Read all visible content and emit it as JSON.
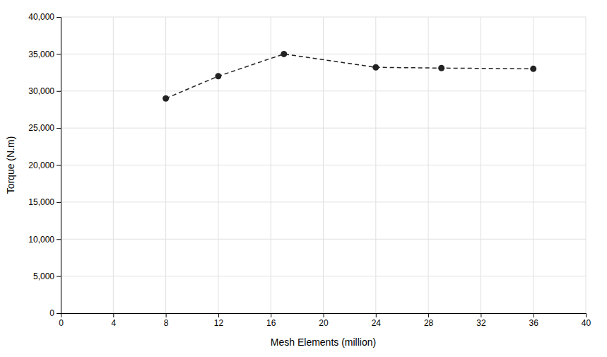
{
  "chart_data": {
    "type": "line",
    "xlabel": "Mesh Elements (million)",
    "ylabel": "Torque (N.m)",
    "x": [
      8,
      12,
      17,
      24,
      29,
      36
    ],
    "values": [
      29000,
      32000,
      35000,
      33200,
      33100,
      33000
    ],
    "color": "#222222",
    "marker": "circle",
    "line_style": "dashed",
    "xlim": [
      0,
      40
    ],
    "ylim": [
      0,
      40000
    ],
    "xticks": [
      0,
      4,
      8,
      12,
      16,
      20,
      24,
      28,
      32,
      36,
      40
    ],
    "yticks": [
      0,
      {
        "value": 5000,
        "label": "5,000"
      },
      {
        "value": 10000,
        "label": "10,000"
      },
      {
        "value": 15000,
        "label": "15,000"
      },
      {
        "value": 20000,
        "label": "20,000"
      },
      {
        "value": 25000,
        "label": "25,000"
      },
      {
        "value": 30000,
        "label": "30,000"
      },
      {
        "value": 35000,
        "label": "35,000"
      },
      {
        "value": 40000,
        "label": "40,000"
      }
    ],
    "grid": true
  }
}
